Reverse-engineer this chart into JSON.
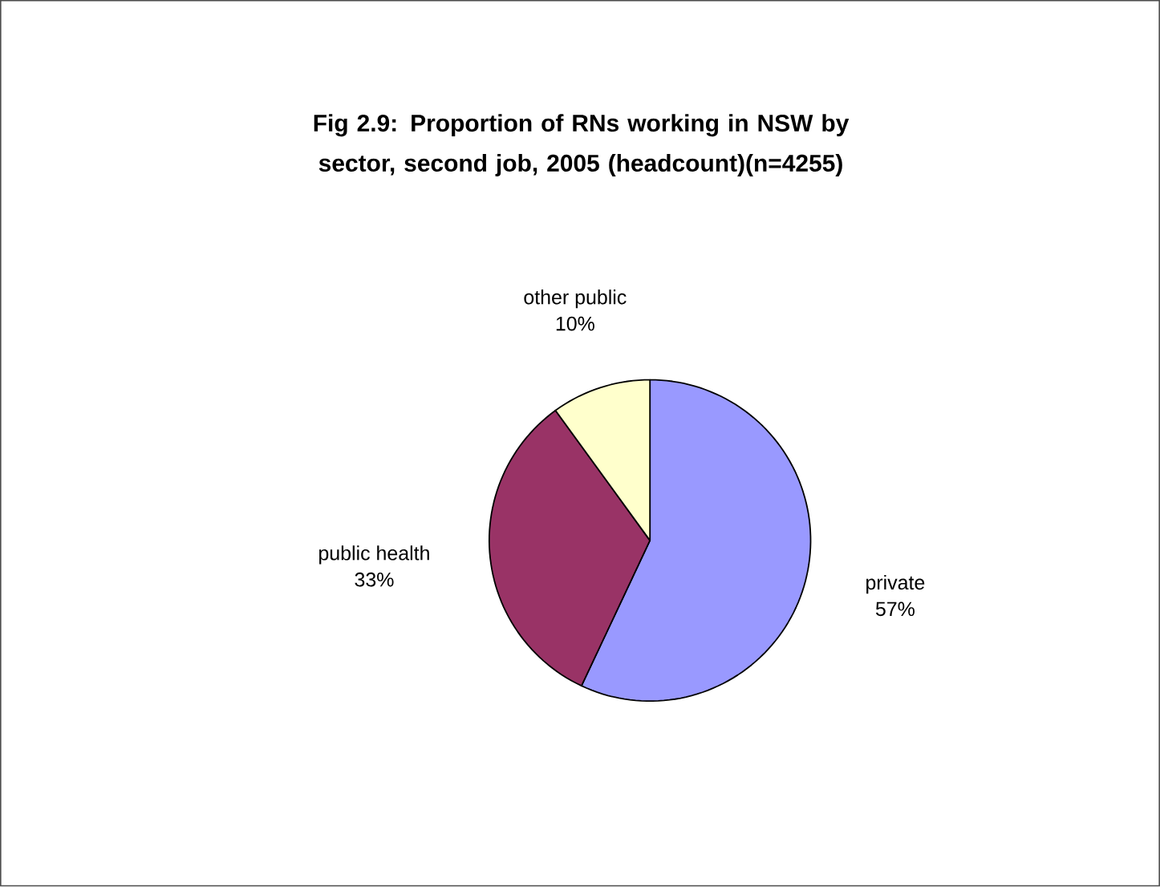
{
  "chart_data": {
    "type": "pie",
    "title": "Fig 2.9: Proportion of RNs working in NSW by sector, second job, 2005 (headcount)(n=4255)",
    "categories": [
      "private",
      "public health",
      "other public"
    ],
    "values": [
      57,
      33,
      10
    ],
    "value_labels": [
      "57%",
      "33%",
      "10%"
    ],
    "colors": [
      "#9999ff",
      "#993366",
      "#ffffcc"
    ]
  }
}
